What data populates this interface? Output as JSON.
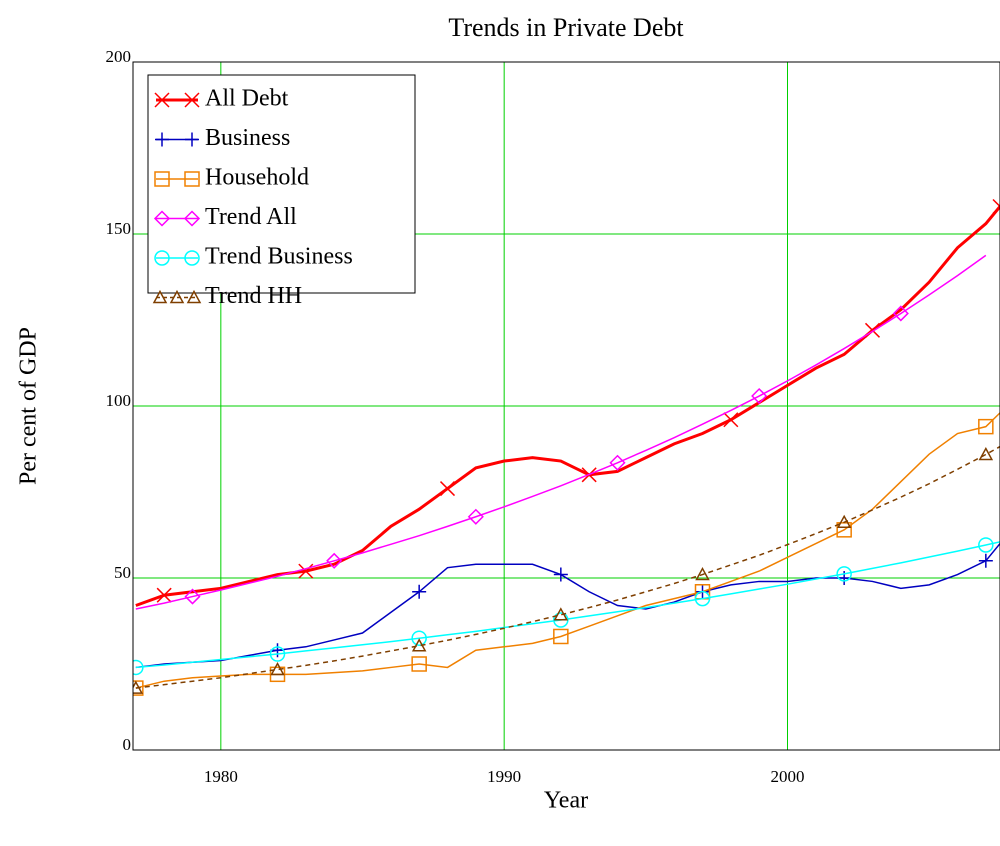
{
  "chart_data": {
    "type": "line",
    "title": "Trends in Private Debt",
    "x_label": "Year",
    "y_label": "Per cent of GDP",
    "x": [
      1977,
      1978,
      1979,
      1980,
      1981,
      1982,
      1983,
      1984,
      1985,
      1986,
      1987,
      1988,
      1989,
      1990,
      1991,
      1992,
      1993,
      1994,
      1995,
      1996,
      1997,
      1998,
      1999,
      2000,
      2001,
      2002,
      2003,
      2004,
      2005,
      2006,
      2007,
      2007.5
    ],
    "series": [
      {
        "name": "All Debt",
        "color": "#ff0000",
        "marker": "x",
        "values": [
          42,
          45,
          46,
          47,
          49,
          51,
          52,
          54,
          58,
          65,
          70,
          76,
          82,
          84,
          85,
          84,
          80,
          81,
          85,
          89,
          92,
          96,
          101,
          106,
          111,
          115,
          122,
          128,
          136,
          146,
          153,
          158
        ]
      },
      {
        "name": "Business",
        "color": "#0000c0",
        "marker": "plus",
        "values": [
          24,
          25,
          25.5,
          26,
          27.5,
          29,
          30,
          32,
          34,
          40,
          46,
          53,
          54,
          54,
          54,
          51,
          46,
          42,
          41,
          43,
          46,
          48,
          49,
          49,
          50,
          50,
          49,
          47,
          48,
          51,
          55,
          60
        ]
      },
      {
        "name": "Household",
        "color": "#f08000",
        "marker": "square",
        "values": [
          18,
          20,
          21,
          21.5,
          22,
          22,
          22,
          22.5,
          23,
          24,
          25,
          24,
          29,
          30,
          31,
          33,
          36,
          39,
          42,
          44,
          46,
          49,
          52,
          56,
          60,
          64,
          70,
          78,
          86,
          92,
          94,
          98
        ]
      },
      {
        "name": "Trend All",
        "color": "#ff00ff",
        "marker": "diamond",
        "values": [
          41,
          42.7,
          44.6,
          46.5,
          48.5,
          50.5,
          52.7,
          55,
          57.3,
          59.8,
          62.3,
          65,
          67.8,
          70.7,
          73.7,
          76.8,
          80.1,
          83.5,
          87.1,
          90.8,
          94.7,
          98.7,
          102.9,
          107.3,
          111.9,
          116.7,
          121.7,
          126.9,
          132.3,
          137.9,
          143.8,
          null
        ]
      },
      {
        "name": "Trend Business",
        "color": "#00ffff",
        "marker": "circle",
        "values": [
          24,
          24.7,
          25.5,
          26.3,
          27.1,
          27.9,
          28.8,
          29.7,
          30.6,
          31.5,
          32.5,
          33.5,
          34.5,
          35.6,
          36.7,
          37.8,
          39,
          40.2,
          41.4,
          42.7,
          44,
          45.4,
          46.8,
          48.2,
          49.7,
          51.2,
          52.8,
          54.4,
          56.1,
          57.8,
          59.6,
          60.5
        ]
      },
      {
        "name": "Trend HH",
        "color": "#7f3f00",
        "marker": "triangle",
        "dashed": true,
        "values": [
          18,
          19,
          20,
          21,
          22.2,
          23.4,
          24.6,
          25.9,
          27.3,
          28.8,
          30.3,
          31.9,
          33.6,
          35.4,
          37.3,
          39.3,
          41.4,
          43.6,
          46,
          48.4,
          51,
          53.8,
          56.6,
          59.7,
          62.9,
          66.2,
          69.8,
          73.5,
          77.4,
          81.6,
          85.9,
          88.2
        ]
      }
    ],
    "xlim": [
      1976.9,
      2007.5
    ],
    "ylim": [
      0,
      200
    ],
    "xticks": [
      1980,
      1990,
      2000
    ],
    "yticks": [
      0,
      50,
      100,
      150,
      200
    ],
    "grid": true,
    "grid_color": "#00d000",
    "legend": "upper left"
  }
}
